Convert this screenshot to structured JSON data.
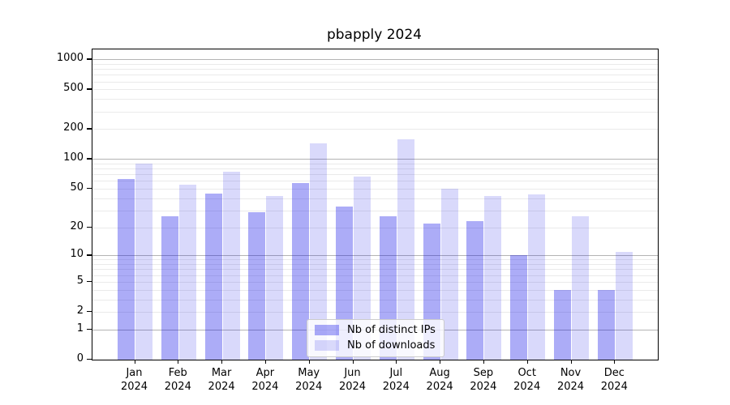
{
  "title": "pbapply 2024",
  "chart_data": {
    "type": "bar",
    "title": "pbapply 2024",
    "xlabel": "",
    "ylabel": "",
    "y_scale": "log1p",
    "ylim": [
      0,
      1000
    ],
    "grid": true,
    "legend_position": "bottom-center",
    "categories": [
      {
        "month": "Jan",
        "year": "2024"
      },
      {
        "month": "Feb",
        "year": "2024"
      },
      {
        "month": "Mar",
        "year": "2024"
      },
      {
        "month": "Apr",
        "year": "2024"
      },
      {
        "month": "May",
        "year": "2024"
      },
      {
        "month": "Jun",
        "year": "2024"
      },
      {
        "month": "Jul",
        "year": "2024"
      },
      {
        "month": "Aug",
        "year": "2024"
      },
      {
        "month": "Sep",
        "year": "2024"
      },
      {
        "month": "Oct",
        "year": "2024"
      },
      {
        "month": "Nov",
        "year": "2024"
      },
      {
        "month": "Dec",
        "year": "2024"
      }
    ],
    "series": [
      {
        "name": "Nb of distinct IPs",
        "color": "rgba(2,2,230,0.33)",
        "values": [
          63,
          26,
          45,
          29,
          57,
          33,
          26,
          22,
          23,
          10,
          4,
          4
        ]
      },
      {
        "name": "Nb of downloads",
        "color": "rgba(2,2,230,0.15)",
        "values": [
          90,
          55,
          74,
          42,
          143,
          66,
          159,
          50,
          42,
          44,
          26,
          11
        ]
      }
    ],
    "y_ticks": [
      0,
      1,
      2,
      5,
      10,
      20,
      50,
      100,
      200,
      500,
      1000
    ],
    "grid_major": [
      1,
      10,
      100,
      1000
    ],
    "grid_minor": [
      2,
      3,
      4,
      5,
      6,
      7,
      8,
      9,
      20,
      30,
      40,
      50,
      60,
      70,
      80,
      90,
      200,
      300,
      400,
      500,
      600,
      700,
      800,
      900
    ],
    "colors": {
      "grid_major": "#b4b4b4",
      "grid_minor": "#eaeaea",
      "spine": "#000000",
      "legend_border": "#cccccc"
    }
  }
}
